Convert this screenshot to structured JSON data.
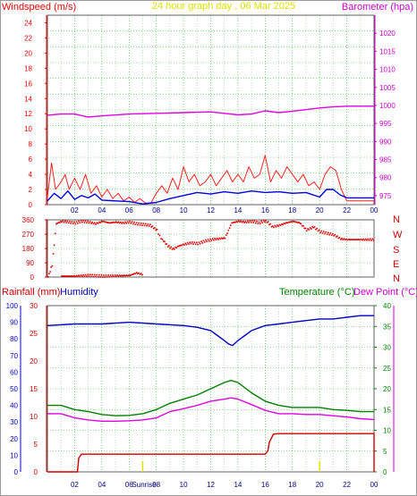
{
  "top_labels": {
    "left": "Windspeed (m/s)",
    "center": "24 hour graph day , 06 Mar 2025",
    "right": "Barometer (hpa)"
  },
  "direction_labels": [
    "N",
    "W",
    "S",
    "E",
    "N"
  ],
  "bottom_labels": {
    "rainfall": "Rainfall (mm)",
    "humidity": "Humidity",
    "temperature": "Temperature (°C)",
    "dewpoint": "Dew Point (°C)"
  },
  "sunrise_label": "Sunrise",
  "colors": {
    "windspeed": "#ff0000",
    "wind_gust": "#ff2020",
    "wind_avg": "#0000e0",
    "barometer": "#e000e0",
    "direction": "#dd0000",
    "humidity": "#0000c0",
    "temperature": "#008000",
    "dewpoint": "#e000e0",
    "rainfall": "#cc0000",
    "grid": "#00b000",
    "sunrise": "#e0e000"
  },
  "chart_data": [
    {
      "type": "line",
      "title": "24 hour graph day , 06 Mar 2025",
      "ylabel": "Windspeed (m/s)",
      "y2label": "Barometer (hpa)",
      "ylim": [
        0,
        25
      ],
      "y2lim": [
        972.5,
        1025
      ],
      "yticks": [
        "0",
        "2",
        "4",
        "6",
        "8",
        "10",
        "12",
        "14",
        "16",
        "18",
        "20",
        "22",
        "24"
      ],
      "y2ticks": [
        "975",
        "980",
        "985",
        "990",
        "995",
        "1000",
        "1005",
        "1010",
        "1015",
        "1020"
      ],
      "xticks": [
        "02",
        "04",
        "06",
        "08",
        "10",
        "12",
        "14",
        "16",
        "18",
        "20",
        "22",
        "00"
      ],
      "xlim": [
        0,
        24
      ],
      "grid": true,
      "series": [
        {
          "name": "Barometer",
          "axis": "right",
          "x": [
            0,
            1,
            2,
            3,
            4,
            6,
            8,
            10,
            12,
            14,
            15,
            16,
            17,
            18,
            20,
            21,
            22,
            24
          ],
          "values": [
            997.3,
            997.6,
            997.6,
            996.8,
            997.1,
            997.6,
            997.8,
            998.0,
            998.2,
            997.4,
            997.6,
            998.5,
            998.0,
            998.4,
            999.3,
            999.6,
            999.8,
            999.8
          ]
        },
        {
          "name": "Wind Gust",
          "axis": "left",
          "x": [
            0,
            0.3,
            0.6,
            1,
            1.3,
            1.6,
            2,
            2.4,
            2.8,
            3.2,
            3.6,
            4,
            4.4,
            4.8,
            5.2,
            5.6,
            6,
            6.4,
            6.8,
            7.2,
            7.6,
            8,
            8.4,
            8.8,
            9.2,
            9.6,
            10,
            10.4,
            10.8,
            11.2,
            11.6,
            12,
            12.4,
            12.8,
            13.2,
            13.6,
            14,
            14.4,
            14.8,
            15.2,
            15.6,
            16,
            16.4,
            16.8,
            17.2,
            17.6,
            18,
            18.4,
            18.8,
            19.2,
            19.6,
            20,
            20.4,
            20.8,
            21.2,
            21.6,
            22,
            24
          ],
          "values": [
            1,
            5.5,
            2,
            3,
            4,
            2,
            3.5,
            2,
            4,
            1.5,
            2.5,
            1,
            2,
            0.8,
            1.5,
            0.5,
            1,
            0.3,
            0.8,
            0.2,
            0.2,
            1.5,
            2.5,
            1.5,
            3.5,
            2,
            5,
            3,
            4,
            2.5,
            3,
            4,
            2.5,
            3.5,
            4.5,
            3,
            4,
            3,
            5,
            3.5,
            4,
            6.5,
            3,
            4.5,
            3.5,
            5,
            4,
            3,
            4,
            2.5,
            3,
            2,
            4,
            5,
            4.5,
            2,
            0.5,
            0.5
          ]
        },
        {
          "name": "Wind Average",
          "axis": "left",
          "x": [
            0,
            0.5,
            1,
            1.5,
            2,
            2.5,
            3,
            3.5,
            4,
            5,
            6,
            7,
            8,
            9,
            10,
            11,
            12,
            13,
            14,
            15,
            16,
            17,
            18,
            19,
            20,
            20.5,
            21,
            21.5,
            22,
            24
          ],
          "values": [
            0.5,
            1.5,
            0.8,
            1.8,
            0.7,
            1.2,
            0.9,
            1.4,
            0.6,
            0.5,
            0.4,
            0.1,
            0.3,
            0.8,
            1.2,
            1.6,
            1.4,
            1.7,
            1.5,
            1.8,
            1.6,
            1.7,
            1.5,
            1.6,
            1.0,
            2.0,
            2.0,
            1.3,
            0.9,
            0.9
          ]
        }
      ]
    },
    {
      "type": "scatter",
      "title": "",
      "ylabel": "",
      "yticks": [
        "0",
        "90",
        "180",
        "270",
        "360"
      ],
      "y2ticks": [
        "N",
        "W",
        "S",
        "E",
        "N"
      ],
      "ylim": [
        0,
        360
      ],
      "xticks": [
        "02",
        "04",
        "06",
        "08",
        "10",
        "12",
        "14",
        "16",
        "18",
        "20",
        "22",
        "00"
      ],
      "xlim": [
        0,
        24
      ],
      "grid": true,
      "series": [
        {
          "name": "Wind Direction",
          "x": [
            0,
            0.3,
            0.6,
            1,
            1.5,
            2,
            2.5,
            3,
            3.5,
            4,
            4.5,
            5,
            5.5,
            6,
            6.5,
            7,
            7.5,
            8,
            8.2,
            8.4,
            8.8,
            9.2,
            9.6,
            10,
            10.5,
            11,
            11.5,
            12,
            12.5,
            13,
            13.5,
            14,
            14.5,
            15,
            15.5,
            16,
            16.5,
            17,
            17.5,
            18,
            18.5,
            19,
            19.5,
            20,
            20.5,
            21,
            21.5,
            22,
            24
          ],
          "values": [
            5,
            80,
            340,
            355,
            350,
            345,
            355,
            350,
            340,
            355,
            345,
            350,
            345,
            350,
            340,
            335,
            330,
            300,
            260,
            240,
            200,
            180,
            200,
            210,
            220,
            215,
            230,
            240,
            245,
            250,
            345,
            355,
            350,
            355,
            345,
            360,
            320,
            330,
            345,
            355,
            345,
            300,
            320,
            290,
            280,
            270,
            245,
            240,
            240
          ]
        },
        {
          "name": "Wind Direction (low)",
          "x": [
            1,
            2,
            3,
            4,
            5,
            6,
            6.5,
            7
          ],
          "values": [
            10,
            10,
            15,
            10,
            12,
            15,
            30,
            20
          ]
        }
      ]
    },
    {
      "type": "line",
      "title": "",
      "ylabel": "Rainfall (mm)",
      "y2label": "Temperature (°C)",
      "ylim": [
        0,
        30
      ],
      "y2lim": [
        0,
        40
      ],
      "yticks_rain": [
        "0",
        "5",
        "10",
        "15",
        "20",
        "25",
        "30"
      ],
      "yticks_humidity": [
        "0",
        "10",
        "20",
        "30",
        "40",
        "50",
        "60",
        "70",
        "80",
        "90",
        "100"
      ],
      "y2ticks": [
        "0",
        "5",
        "10",
        "15",
        "20",
        "25",
        "30",
        "35",
        "40"
      ],
      "xticks": [
        "02",
        "04",
        "06",
        "08",
        "10",
        "12",
        "14",
        "16",
        "18",
        "20",
        "22",
        "00"
      ],
      "xlim": [
        0,
        24
      ],
      "grid": true,
      "series": [
        {
          "name": "Humidity",
          "axis": "humidity",
          "x": [
            0,
            2,
            4,
            6,
            8,
            10,
            11,
            12,
            12.5,
            13,
            13.3,
            13.6,
            14,
            14.5,
            15,
            16,
            17,
            18,
            19,
            20,
            21,
            22,
            23,
            24
          ],
          "values": [
            88,
            89,
            89,
            90,
            89,
            88,
            87,
            85,
            82,
            79,
            77,
            76,
            79,
            82,
            85,
            88,
            89,
            90,
            91,
            92,
            92,
            93,
            94,
            94
          ]
        },
        {
          "name": "Temperature",
          "axis": "right",
          "x": [
            0,
            1,
            2,
            3,
            4,
            5,
            6,
            7,
            8,
            9,
            10,
            11,
            12,
            13,
            13.5,
            14,
            15,
            16,
            17,
            18,
            19,
            20,
            21,
            22,
            23,
            24
          ],
          "values": [
            16,
            16,
            15,
            14.5,
            13.8,
            13.5,
            13.6,
            14,
            15,
            16.5,
            17.5,
            18.5,
            20,
            21.5,
            22,
            21.5,
            19,
            17,
            16,
            15.5,
            15.5,
            15.5,
            15,
            14.8,
            14.5,
            14.5
          ]
        },
        {
          "name": "Dew Point",
          "axis": "right",
          "x": [
            0,
            1,
            2,
            3,
            4,
            5,
            6,
            7,
            8,
            9,
            10,
            11,
            12,
            13,
            13.5,
            14,
            15,
            16,
            17,
            18,
            19,
            20,
            21,
            22,
            23,
            24
          ],
          "values": [
            14,
            14,
            13,
            12.5,
            12.2,
            12.2,
            12.3,
            12.5,
            13,
            14.5,
            15.2,
            16,
            17,
            17.5,
            17.8,
            17.5,
            16.2,
            14.8,
            14,
            14,
            13.8,
            13.8,
            13.5,
            13.2,
            12.8,
            12.6
          ]
        },
        {
          "name": "Rainfall",
          "axis": "left",
          "x": [
            0,
            2.2,
            2.3,
            2.5,
            16,
            16.2,
            16.3,
            16.6,
            17,
            17.5,
            24,
            24,
            24
          ],
          "values": [
            0,
            0,
            2.5,
            3.2,
            3.2,
            3.8,
            5.3,
            6.8,
            6.9,
            6.9,
            6.9,
            0,
            0
          ]
        }
      ]
    }
  ]
}
